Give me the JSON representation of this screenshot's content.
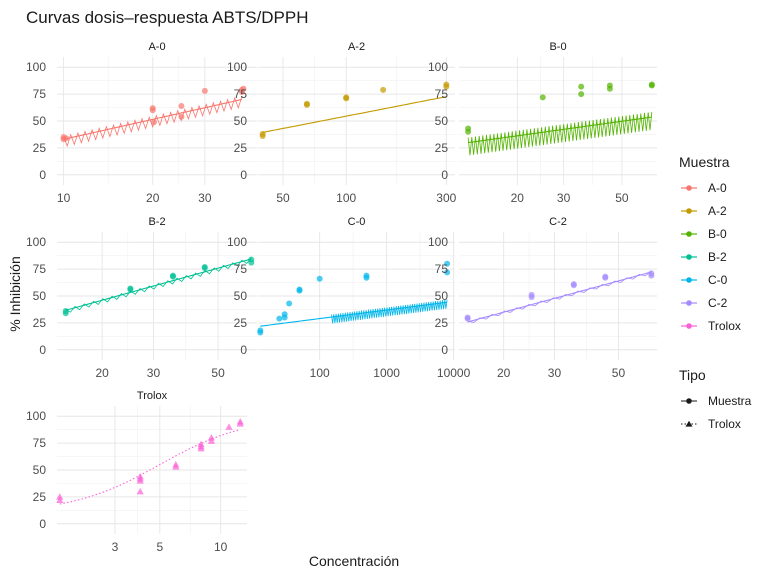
{
  "chart_data": {
    "type": "scatter",
    "title": "Curvas dosis–respuesta ABTS/DPPH",
    "xlabel": "Concentración",
    "ylabel": "% Inhibición",
    "x_scale": "log",
    "y_ticks": [
      0,
      25,
      50,
      75,
      100
    ],
    "ylim": [
      0,
      100
    ],
    "legend_muestra": {
      "title": "Muestra",
      "position": "right",
      "items": [
        {
          "name": "A-0",
          "color": "#F8766D"
        },
        {
          "name": "A-2",
          "color": "#C49A00"
        },
        {
          "name": "B-0",
          "color": "#53B400"
        },
        {
          "name": "B-2",
          "color": "#00C094"
        },
        {
          "name": "C-0",
          "color": "#00B6EB"
        },
        {
          "name": "C-2",
          "color": "#A58AFF"
        },
        {
          "name": "Trolox",
          "color": "#FB61D7"
        }
      ]
    },
    "legend_tipo": {
      "title": "Tipo",
      "items": [
        {
          "name": "Muestra",
          "line": "solid",
          "shape": "circle"
        },
        {
          "name": "Trolox",
          "line": "dotted",
          "shape": "triangle"
        }
      ]
    },
    "panels": [
      {
        "name": "A-0",
        "color": "#F8766D",
        "tipo": "Muestra",
        "xlim": [
          9.5,
          45
        ],
        "x_ticks": [
          10,
          20,
          30
        ],
        "x_tick_labels": [
          "10",
          "20",
          "30"
        ],
        "points": [
          [
            10,
            33
          ],
          [
            10,
            35
          ],
          [
            10.2,
            34
          ],
          [
            20,
            60
          ],
          [
            20,
            62
          ],
          [
            20.2,
            49
          ],
          [
            25,
            54
          ],
          [
            25,
            64
          ],
          [
            30,
            78
          ],
          [
            40,
            79
          ],
          [
            40,
            77
          ],
          [
            40.5,
            80
          ]
        ],
        "curve": {
          "a": -28.5,
          "b": 61.5,
          "x": [
            10,
            40
          ]
        },
        "zigzag": {
          "from": 10,
          "to": 40,
          "n": 50,
          "amp": 7
        }
      },
      {
        "name": "A-2",
        "color": "#C49A00",
        "tipo": "Muestra",
        "xlim": [
          38,
          330
        ],
        "x_ticks": [
          50,
          100,
          300
        ],
        "x_tick_labels": [
          "50",
          "100",
          "300"
        ],
        "points": [
          [
            40,
            36
          ],
          [
            40,
            38
          ],
          [
            65,
            65
          ],
          [
            65,
            66
          ],
          [
            100,
            71
          ],
          [
            100,
            72
          ],
          [
            150,
            79
          ],
          [
            300,
            82
          ],
          [
            300,
            84
          ]
        ],
        "curve": {
          "a": -21.5,
          "b": 38,
          "x": [
            40,
            300
          ]
        }
      },
      {
        "name": "B-0",
        "color": "#53B400",
        "tipo": "Muestra",
        "xlim": [
          12,
          68
        ],
        "x_ticks": [
          20,
          30,
          50
        ],
        "x_tick_labels": [
          "20",
          "30",
          "50"
        ],
        "points": [
          [
            13,
            40
          ],
          [
            13,
            43
          ],
          [
            25,
            72
          ],
          [
            35,
            82
          ],
          [
            35,
            75
          ],
          [
            45,
            83
          ],
          [
            45,
            80
          ],
          [
            65,
            83
          ],
          [
            65,
            84
          ]
        ],
        "curve": {
          "a": -8,
          "b": 34,
          "x": [
            13,
            65
          ]
        },
        "zigzag": {
          "from": 13,
          "to": 65,
          "n": 100,
          "amp": 12
        }
      },
      {
        "name": "B-2",
        "color": "#00C094",
        "tipo": "Muestra",
        "xlim": [
          14,
          68
        ],
        "x_ticks": [
          20,
          30,
          50
        ],
        "x_tick_labels": [
          "20",
          "30",
          "50"
        ],
        "points": [
          [
            15,
            34
          ],
          [
            15,
            36
          ],
          [
            25,
            56
          ],
          [
            25,
            57
          ],
          [
            35,
            68
          ],
          [
            35,
            69
          ],
          [
            45,
            76
          ],
          [
            45,
            77
          ],
          [
            65,
            81
          ],
          [
            65,
            84
          ]
        ],
        "curve": {
          "a": -51.5,
          "b": 75,
          "x": [
            15,
            65
          ]
        },
        "zigzag": {
          "from": 15,
          "to": 65,
          "n": 40,
          "amp": 3
        }
      },
      {
        "name": "C-0",
        "color": "#00B6EB",
        "tipo": "Muestra",
        "xlim": [
          12,
          10500
        ],
        "x_ticks": [
          100,
          1000,
          10000
        ],
        "x_tick_labels": [
          "100",
          "1000",
          "10000"
        ],
        "points": [
          [
            13,
            16
          ],
          [
            13,
            18
          ],
          [
            25,
            29
          ],
          [
            30,
            30
          ],
          [
            30,
            33
          ],
          [
            35,
            43
          ],
          [
            50,
            55
          ],
          [
            50,
            56
          ],
          [
            100,
            66
          ],
          [
            500,
            67
          ],
          [
            500,
            69
          ],
          [
            8000,
            72
          ],
          [
            8000,
            80
          ]
        ],
        "curve": {
          "a": 13,
          "b": 8,
          "x": [
            13,
            8000
          ]
        },
        "zigzag": {
          "from": 150,
          "to": 8000,
          "n": 100,
          "amp": 6
        }
      },
      {
        "name": "C-2",
        "color": "#A58AFF",
        "tipo": "Muestra",
        "xlim": [
          14,
          68
        ],
        "x_ticks": [
          20,
          30,
          50
        ],
        "x_tick_labels": [
          "20",
          "30",
          "50"
        ],
        "points": [
          [
            15,
            29
          ],
          [
            15,
            30
          ],
          [
            25,
            49
          ],
          [
            25,
            51
          ],
          [
            35,
            60
          ],
          [
            35,
            61
          ],
          [
            45,
            67
          ],
          [
            45,
            68
          ],
          [
            65,
            69
          ],
          [
            65,
            71
          ]
        ],
        "curve": {
          "a": -60,
          "b": 73,
          "x": [
            15,
            65
          ]
        },
        "zigzag": {
          "from": 15,
          "to": 65,
          "n": 30,
          "amp": 2
        }
      },
      {
        "name": "Trolox",
        "color": "#FB61D7",
        "tipo": "Trolox",
        "xlim": [
          1.55,
          13.5
        ],
        "x_ticks": [
          3,
          5,
          10
        ],
        "x_tick_labels": [
          "3",
          "5",
          "10"
        ],
        "points": [
          [
            1.6,
            22
          ],
          [
            1.6,
            25
          ],
          [
            4,
            30
          ],
          [
            4,
            40
          ],
          [
            4,
            42
          ],
          [
            4,
            44
          ],
          [
            6,
            53
          ],
          [
            6,
            55
          ],
          [
            8,
            70
          ],
          [
            8,
            72
          ],
          [
            8,
            74
          ],
          [
            9,
            77
          ],
          [
            9,
            80
          ],
          [
            11,
            90
          ],
          [
            12.5,
            93
          ],
          [
            12.5,
            95
          ]
        ],
        "sigmoid": {
          "ec50": 5,
          "hill": 2,
          "top": 100,
          "bottom": 10,
          "x": [
            1.6,
            12.5
          ]
        }
      }
    ]
  }
}
